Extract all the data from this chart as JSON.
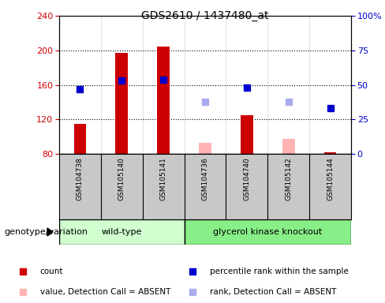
{
  "title": "GDS2610 / 1437480_at",
  "samples": [
    "GSM104738",
    "GSM105140",
    "GSM105141",
    "GSM104736",
    "GSM104740",
    "GSM105142",
    "GSM105144"
  ],
  "wt_indices": [
    0,
    1,
    2
  ],
  "ko_indices": [
    3,
    4,
    5,
    6
  ],
  "ylim_left": [
    80,
    240
  ],
  "ylim_right": [
    0,
    100
  ],
  "yticks_left": [
    80,
    120,
    160,
    200,
    240
  ],
  "yticks_right": [
    0,
    25,
    50,
    75,
    100
  ],
  "ytick_labels_right": [
    "0",
    "25",
    "50",
    "75",
    "100%"
  ],
  "bar_bottom": 80,
  "red_bars": [
    115,
    197,
    204,
    null,
    125,
    null,
    82
  ],
  "pink_bars": [
    null,
    null,
    null,
    93,
    null,
    97,
    null
  ],
  "blue_squares": [
    155,
    165,
    166,
    null,
    157,
    null,
    133
  ],
  "light_blue_squares": [
    null,
    null,
    null,
    140,
    null,
    140,
    null
  ],
  "bar_width": 0.3,
  "sq_size": 6,
  "colors": {
    "red_bar": "#cc0000",
    "pink_bar": "#ffb3b3",
    "blue_square": "#0000cc",
    "light_blue_square": "#aaaaee",
    "wildtype_bg": "#d0ffd0",
    "knockout_bg": "#88ee88",
    "gray_sample": "#c8c8c8",
    "axis_left_color": "#cc0000",
    "axis_right_color": "#0000cc",
    "plot_bg": "#ffffff"
  },
  "legend": [
    {
      "label": "count",
      "color": "#cc0000"
    },
    {
      "label": "percentile rank within the sample",
      "color": "#0000cc"
    },
    {
      "label": "value, Detection Call = ABSENT",
      "color": "#ffb3b3"
    },
    {
      "label": "rank, Detection Call = ABSENT",
      "color": "#aaaaee"
    }
  ],
  "genotype_label": "genotype/variation",
  "wt_label": "wild-type",
  "ko_label": "glycerol kinase knockout"
}
